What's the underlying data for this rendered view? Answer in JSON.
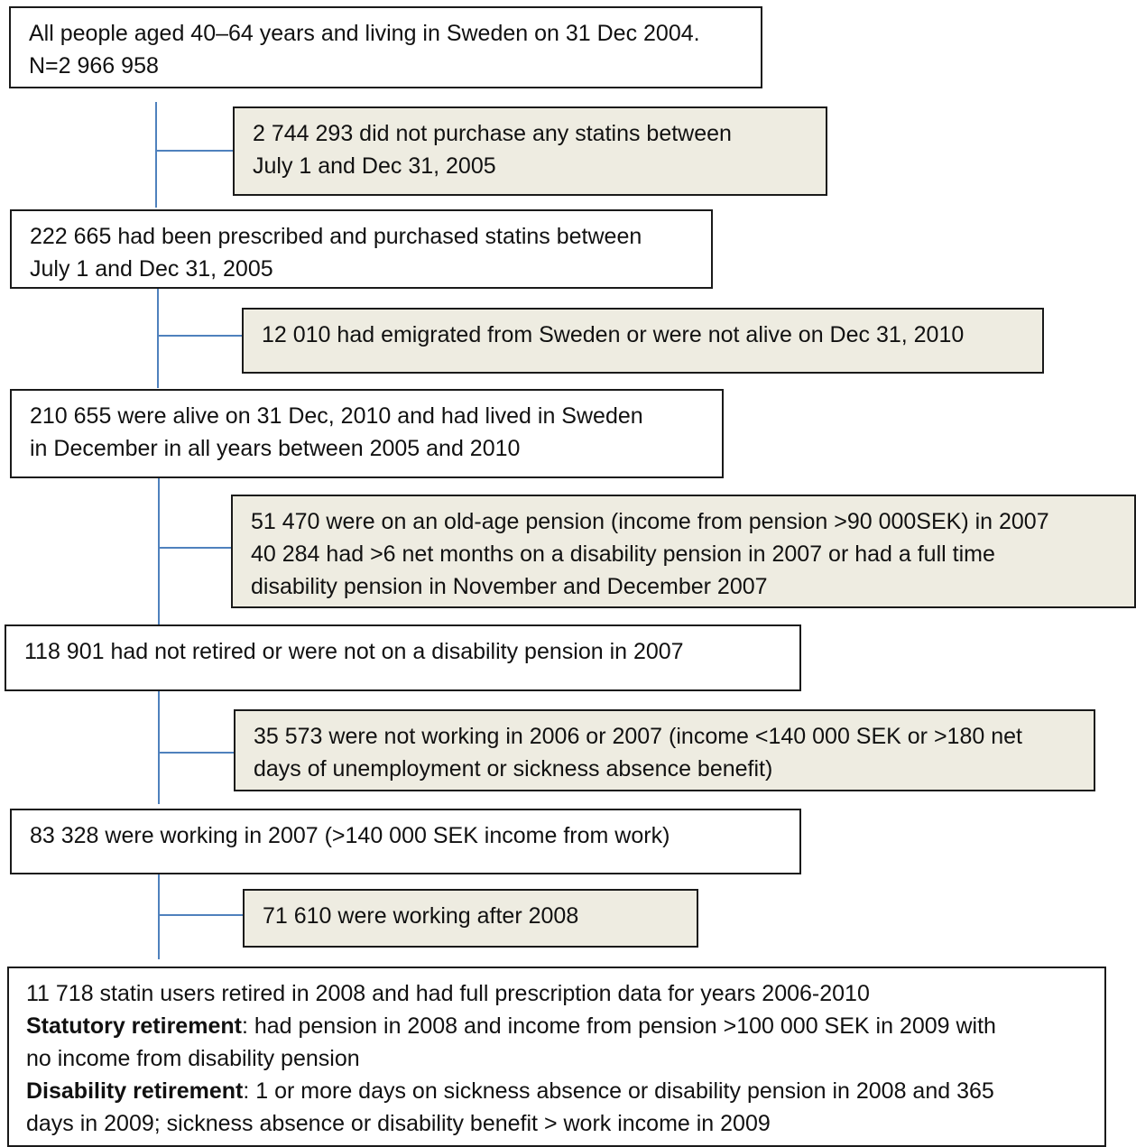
{
  "flowchart": {
    "box1": {
      "lines": [
        "All people aged 40–64 years and living in Sweden on 31 Dec 2004.",
        "N=2 966 958"
      ]
    },
    "excl1": {
      "lines": [
        "2 744 293 did not purchase any statins between",
        "July 1 and Dec 31, 2005"
      ]
    },
    "box2": {
      "lines": [
        "222 665 had been prescribed and purchased statins between",
        "July 1 and Dec 31, 2005"
      ]
    },
    "excl2": {
      "lines": [
        "12 010 had emigrated from Sweden or were not alive on Dec 31, 2010"
      ]
    },
    "box3": {
      "lines": [
        "210 655 were alive on 31 Dec, 2010 and had lived in Sweden",
        "in December in all years between 2005 and 2010"
      ]
    },
    "excl3": {
      "lines": [
        "51 470 were on an old-age pension (income from pension >90 000SEK) in 2007",
        "40 284 had >6 net months on a disability pension in 2007 or had a full time",
        "disability pension in November and December 2007"
      ]
    },
    "box4": {
      "lines": [
        "118 901 had not retired or were not on a disability pension in 2007"
      ]
    },
    "excl4": {
      "lines": [
        "35 573 were not working in 2006 or 2007 (income <140 000 SEK or >180 net",
        "days of unemployment or sickness absence benefit)"
      ]
    },
    "box5": {
      "lines": [
        "83 328 were working in 2007 (>140 000 SEK income from work)"
      ]
    },
    "excl5": {
      "lines": [
        "71 610 were working after 2008"
      ]
    },
    "box6": {
      "line1": "11 718 statin users retired in 2008 and had full prescription data for years 2006-2010",
      "statutory_label": "Statutory retirement",
      "statutory_text_1": ": had pension in 2008 and income from pension >100 000 SEK in 2009 with",
      "statutory_text_2": "no income from disability pension",
      "disability_label": "Disability retirement",
      "disability_text_1": ": 1 or more days on sickness absence or disability pension in 2008 and 365",
      "disability_text_2": "days in 2009; sickness absence or disability benefit > work income in 2009"
    }
  },
  "colors": {
    "connector": "#4f81bd",
    "exclusion_fill": "#eeece1",
    "border": "#1a1a1a"
  }
}
